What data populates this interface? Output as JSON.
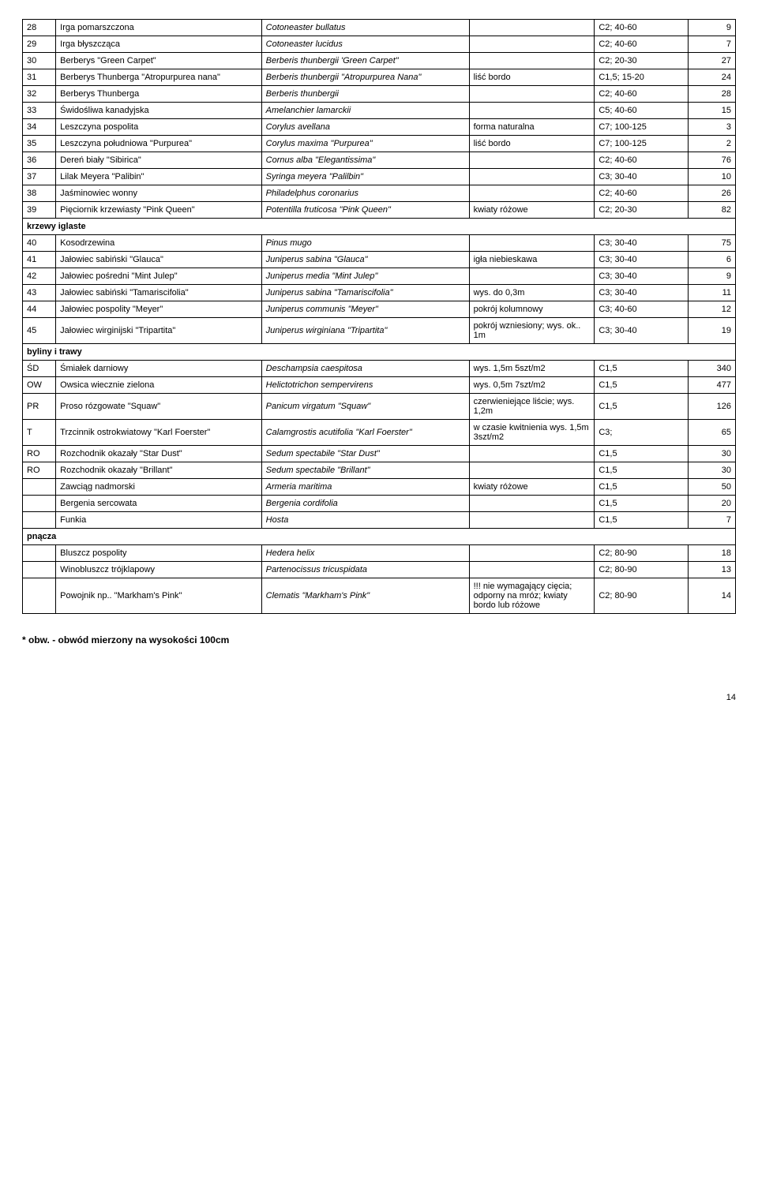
{
  "columns": {
    "widths": [
      "34px",
      "210px",
      "212px",
      "128px",
      "96px",
      "48px"
    ]
  },
  "rows": [
    {
      "type": "row",
      "num": "28",
      "pl": "Irga pomarszczona",
      "lat": "Cotoneaster bullatus",
      "note": "",
      "size": "C2; 40-60",
      "qty": "9"
    },
    {
      "type": "row",
      "num": "29",
      "pl": "Irga błyszcząca",
      "lat": "Cotoneaster lucidus",
      "note": "",
      "size": "C2; 40-60",
      "qty": "7"
    },
    {
      "type": "row",
      "num": "30",
      "pl": "Berberys \"Green Carpet\"",
      "lat": "Berberis thunbergii 'Green Carpet\"",
      "note": "",
      "size": "C2; 20-30",
      "qty": "27"
    },
    {
      "type": "row",
      "num": "31",
      "pl": "Berberys Thunberga \"Atropurpurea nana\"",
      "lat": "Berberis thunbergii \"Atropurpurea Nana\"",
      "note": "liść bordo",
      "size": "C1,5; 15-20",
      "qty": "24"
    },
    {
      "type": "row",
      "num": "32",
      "pl": "Berberys Thunberga",
      "lat": "Berberis thunbergii",
      "note": "",
      "size": "C2; 40-60",
      "qty": "28"
    },
    {
      "type": "row",
      "num": "33",
      "pl": "Świdośliwa kanadyjska",
      "lat": "Amelanchier lamarckii",
      "note": "",
      "size": "C5; 40-60",
      "qty": "15"
    },
    {
      "type": "row",
      "num": "34",
      "pl": "Leszczyna pospolita",
      "lat": "Corylus avellana",
      "note": "forma naturalna",
      "size": "C7; 100-125",
      "qty": "3"
    },
    {
      "type": "row",
      "num": "35",
      "pl": "Leszczyna południowa \"Purpurea\"",
      "lat": "Corylus maxima \"Purpurea\"",
      "note": "liść bordo",
      "size": "C7; 100-125",
      "qty": "2"
    },
    {
      "type": "row",
      "num": "36",
      "pl": "Dereń biały \"Sibirica\"",
      "lat": "Cornus alba \"Elegantissima\"",
      "note": "",
      "size": "C2; 40-60",
      "qty": "76"
    },
    {
      "type": "row",
      "num": "37",
      "pl": "Lilak Meyera \"Palibin\"",
      "lat": "Syringa meyera \"Palilbin\"",
      "note": "",
      "size": "C3; 30-40",
      "qty": "10"
    },
    {
      "type": "row",
      "num": "38",
      "pl": "Jaśminowiec wonny",
      "lat": "Philadelphus coronarius",
      "note": "",
      "size": "C2; 40-60",
      "qty": "26"
    },
    {
      "type": "row",
      "num": "39",
      "pl": "Pięciornik krzewiasty \"Pink Queen\"",
      "lat": "Potentilla fruticosa \"Pink Queen\"",
      "note": "kwiaty różowe",
      "size": "C2; 20-30",
      "qty": "82"
    },
    {
      "type": "section",
      "label": "krzewy iglaste"
    },
    {
      "type": "row",
      "num": "40",
      "pl": "Kosodrzewina",
      "lat": "Pinus mugo",
      "note": "",
      "size": "C3; 30-40",
      "qty": "75"
    },
    {
      "type": "row",
      "num": "41",
      "pl": "Jałowiec sabiński \"Glauca\"",
      "lat": "Juniperus sabina \"Glauca\"",
      "note": "igła niebieskawa",
      "size": "C3; 30-40",
      "qty": "6"
    },
    {
      "type": "row",
      "num": "42",
      "pl": "Jałowiec pośredni \"Mint Julep\"",
      "lat": "Juniperus media \"Mint Julep\"",
      "note": "",
      "size": "C3; 30-40",
      "qty": "9"
    },
    {
      "type": "row",
      "num": "43",
      "pl": "Jałowiec sabiński \"Tamariscifolia\"",
      "lat": "Juniperus sabina \"Tamariscifolia\"",
      "note": "wys. do 0,3m",
      "size": "C3; 30-40",
      "qty": "11"
    },
    {
      "type": "row",
      "num": "44",
      "pl": "Jałowiec pospolity \"Meyer\"",
      "lat": "Juniperus communis \"Meyer\"",
      "note": "pokrój kolumnowy",
      "size": "C3; 40-60",
      "qty": "12"
    },
    {
      "type": "row",
      "num": "45",
      "pl": "Jałowiec wirginijski \"Tripartita\"",
      "lat": "Juniperus wirginiana \"Tripartita\"",
      "note": "pokrój wzniesiony; wys. ok.. 1m",
      "size": "C3; 30-40",
      "qty": "19"
    },
    {
      "type": "section",
      "label": "byliny i trawy"
    },
    {
      "type": "row",
      "num": "ŚD",
      "pl": "Śmiałek darniowy",
      "lat": "Deschampsia caespitosa",
      "note": "wys. 1,5m 5szt/m2",
      "size": "C1,5",
      "qty": "340"
    },
    {
      "type": "row",
      "num": "OW",
      "pl": "Owsica wiecznie zielona",
      "lat": "Helictotrichon sempervirens",
      "note": "wys. 0,5m 7szt/m2",
      "size": "C1,5",
      "qty": "477"
    },
    {
      "type": "row",
      "num": "PR",
      "pl": "Proso rózgowate \"Squaw\"",
      "lat": "Panicum virgatum \"Squaw\"",
      "note": "czerwieniejące liście; wys. 1,2m",
      "size": "C1,5",
      "qty": "126"
    },
    {
      "type": "row",
      "num": "T",
      "pl": "Trzcinnik ostrokwiatowy \"Karl Foerster\"",
      "lat": "Calamgrostis acutifolia \"Karl Foerster\"",
      "note": "w czasie kwitnienia wys. 1,5m 3szt/m2",
      "size": "C3;",
      "qty": "65"
    },
    {
      "type": "row",
      "num": "RO",
      "pl": "Rozchodnik okazały \"Star Dust\"",
      "lat": "Sedum spectabile \"Star Dust\"",
      "note": "",
      "size": "C1,5",
      "qty": "30"
    },
    {
      "type": "row",
      "num": "RO",
      "pl": "Rozchodnik okazały \"Brillant\"",
      "lat": "Sedum spectabile \"Brillant\"",
      "note": "",
      "size": "C1,5",
      "qty": "30"
    },
    {
      "type": "row",
      "num": "",
      "pl": "Zawciąg nadmorski",
      "lat": "Armeria maritima",
      "note": "kwiaty różowe",
      "size": "C1,5",
      "qty": "50"
    },
    {
      "type": "row",
      "num": "",
      "pl": "Bergenia sercowata",
      "lat": "Bergenia cordifolia",
      "note": "",
      "size": "C1,5",
      "qty": "20"
    },
    {
      "type": "row",
      "num": "",
      "pl": "Funkia",
      "lat": "Hosta",
      "note": "",
      "size": "C1,5",
      "qty": "7"
    },
    {
      "type": "section",
      "label": "pnącza"
    },
    {
      "type": "row",
      "num": "",
      "pl": "Bluszcz pospolity",
      "lat": "Hedera helix",
      "note": "",
      "size": "C2; 80-90",
      "qty": "18"
    },
    {
      "type": "row",
      "num": "",
      "pl": "Winobluszcz trójklapowy",
      "lat": "Partenocissus tricuspidata",
      "note": "",
      "size": "C2; 80-90",
      "qty": "13"
    },
    {
      "type": "row",
      "num": "",
      "pl": "Powojnik np.. \"Markham's Pink\"",
      "lat": "Clematis \"Markham's Pink\"",
      "note": "!!! nie wymagający cięcia; odporny na mróz; kwiaty bordo lub różowe",
      "size": "C2; 80-90",
      "qty": "14"
    }
  ],
  "footnote": "* obw. - obwód mierzony na wysokości 100cm",
  "page_number": "14"
}
